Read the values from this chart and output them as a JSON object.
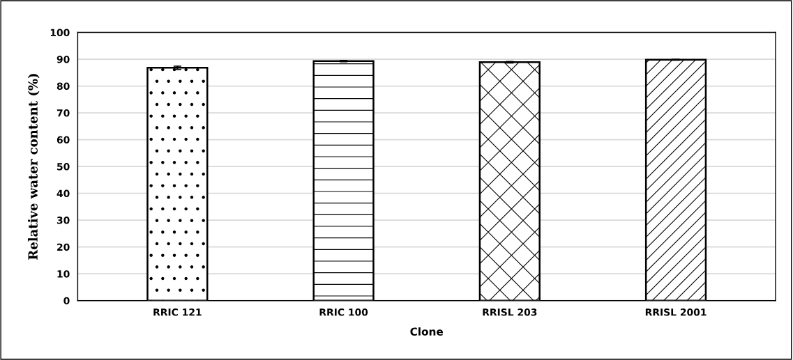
{
  "chart_data": {
    "type": "bar",
    "xlabel": "Clone",
    "ylabel": "Relative water content (%)",
    "categories": [
      "RRIC 121",
      "RRIC 100",
      "RRISL 203",
      "RRISL 2001"
    ],
    "values": [
      86.8,
      89.3,
      88.9,
      89.8
    ],
    "errors": [
      0.6,
      0.3,
      0.3,
      0.2
    ],
    "colors": [
      "#ffffff",
      "#ffffff",
      "#ffffff",
      "#ffffff"
    ],
    "ylim": [
      0,
      100
    ],
    "yticks": [
      0,
      10,
      20,
      30,
      40,
      50,
      60,
      70,
      80,
      90,
      100
    ],
    "grid": "y",
    "legend": false
  }
}
